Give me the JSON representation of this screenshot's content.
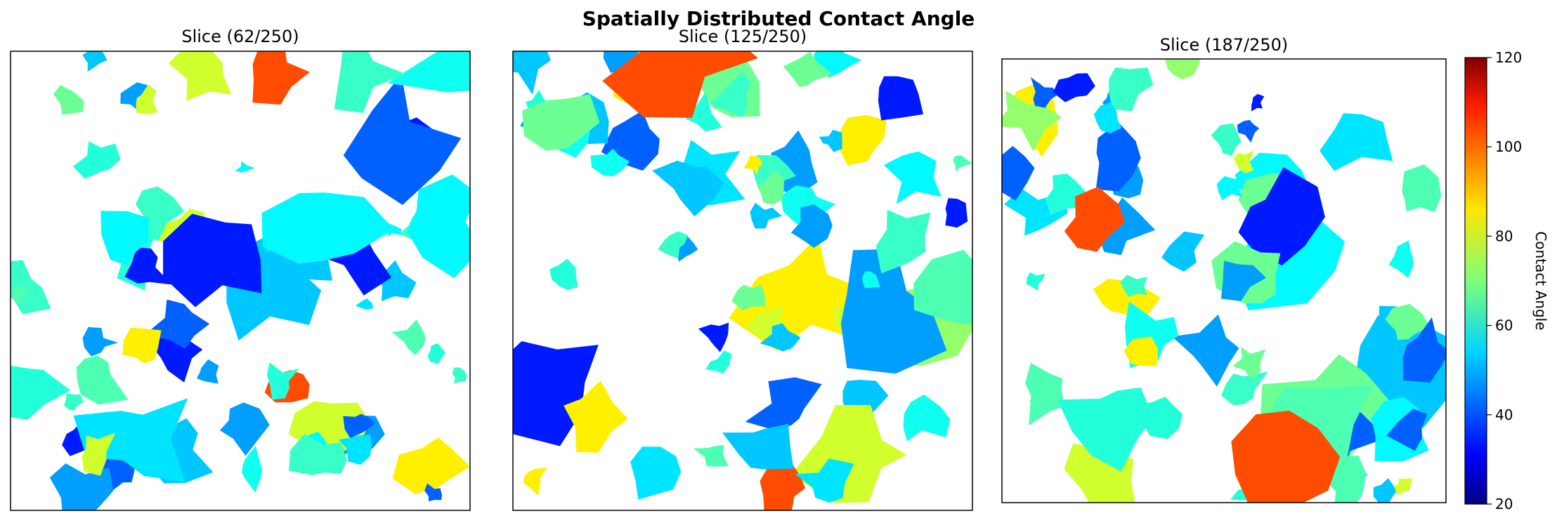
{
  "figure": {
    "title": "Spatially Distributed Contact Angle"
  },
  "chart_data": {
    "type": "heatmap",
    "title": "Spatially Distributed Contact Angle",
    "panels": [
      {
        "title": "Slice (62/250)"
      },
      {
        "title": "Slice (125/250)"
      },
      {
        "title": "Slice (187/250)"
      }
    ],
    "colorbar": {
      "label": "Contact Angle",
      "colormap": "jet",
      "range": [
        20,
        120
      ],
      "ticks": [
        "20",
        "40",
        "60",
        "80",
        "100",
        "120"
      ]
    },
    "axes_ticks_visible": false,
    "background": "#ffffff"
  }
}
